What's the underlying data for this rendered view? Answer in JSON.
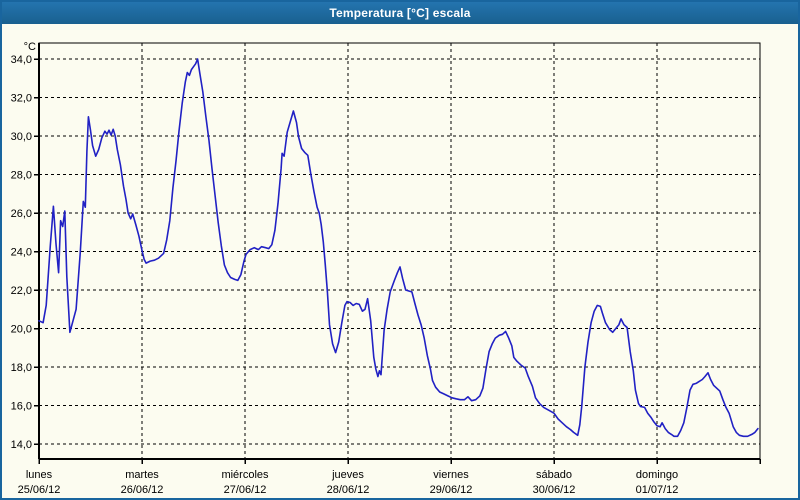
{
  "window": {
    "title": "Temperatura [°C] escala"
  },
  "colors": {
    "titlebar_top": "#2474af",
    "titlebar_bottom": "#19608f",
    "window_border": "#19659e",
    "background": "#fcfcf0",
    "grid": "#000000",
    "axis_text": "#000000",
    "series_line": "#2121c4"
  },
  "chart_data": {
    "type": "line",
    "title": "Temperatura [°C] escala",
    "xlabel": "",
    "ylabel": "°C",
    "grid": "dashed",
    "legend": "none",
    "ylim_display": [
      14,
      34
    ],
    "y_ticks": [
      34,
      32,
      30,
      28,
      26,
      24,
      22,
      20,
      18,
      16,
      14
    ],
    "y_tick_labels": [
      "34,0",
      "32,0",
      "30,0",
      "28,0",
      "26,0",
      "24,0",
      "22,0",
      "20,0",
      "18,0",
      "16,0",
      "14,0"
    ],
    "x_days": [
      {
        "name": "lunes",
        "date": "25/06/12"
      },
      {
        "name": "martes",
        "date": "26/06/12"
      },
      {
        "name": "miércoles",
        "date": "27/06/12"
      },
      {
        "name": "jueves",
        "date": "28/06/12"
      },
      {
        "name": "viernes",
        "date": "29/06/12"
      },
      {
        "name": "sábado",
        "date": "30/06/12"
      },
      {
        "name": "domingo",
        "date": "01/07/12"
      }
    ],
    "x_unit": "days_from_2012-06-25",
    "x_range_days": 7,
    "series": [
      {
        "name": "Temperatura [°C]",
        "color": "#2121c4",
        "points": [
          [
            0.0,
            20.4
          ],
          [
            0.04,
            20.3
          ],
          [
            0.07,
            21.2
          ],
          [
            0.11,
            24.3
          ],
          [
            0.14,
            26.35
          ],
          [
            0.165,
            24.4
          ],
          [
            0.19,
            22.9
          ],
          [
            0.21,
            25.6
          ],
          [
            0.23,
            25.3
          ],
          [
            0.25,
            26.1
          ],
          [
            0.27,
            22.7
          ],
          [
            0.3,
            19.8
          ],
          [
            0.33,
            20.4
          ],
          [
            0.36,
            21.0
          ],
          [
            0.4,
            23.9
          ],
          [
            0.43,
            26.6
          ],
          [
            0.45,
            26.3
          ],
          [
            0.465,
            29.2
          ],
          [
            0.48,
            31.0
          ],
          [
            0.5,
            30.3
          ],
          [
            0.52,
            29.5
          ],
          [
            0.55,
            28.95
          ],
          [
            0.58,
            29.3
          ],
          [
            0.61,
            29.9
          ],
          [
            0.64,
            30.25
          ],
          [
            0.66,
            30.1
          ],
          [
            0.68,
            30.3
          ],
          [
            0.7,
            30.05
          ],
          [
            0.72,
            30.35
          ],
          [
            0.74,
            30.0
          ],
          [
            0.76,
            29.3
          ],
          [
            0.79,
            28.5
          ],
          [
            0.82,
            27.4
          ],
          [
            0.845,
            26.7
          ],
          [
            0.865,
            26.0
          ],
          [
            0.89,
            25.7
          ],
          [
            0.91,
            25.95
          ],
          [
            0.94,
            25.4
          ],
          [
            0.97,
            24.8
          ],
          [
            1.0,
            24.05
          ],
          [
            1.02,
            23.6
          ],
          [
            1.04,
            23.4
          ],
          [
            1.08,
            23.5
          ],
          [
            1.12,
            23.55
          ],
          [
            1.16,
            23.65
          ],
          [
            1.19,
            23.8
          ],
          [
            1.21,
            23.9
          ],
          [
            1.24,
            24.6
          ],
          [
            1.27,
            25.6
          ],
          [
            1.3,
            27.3
          ],
          [
            1.33,
            28.7
          ],
          [
            1.36,
            30.3
          ],
          [
            1.39,
            31.7
          ],
          [
            1.42,
            32.8
          ],
          [
            1.44,
            33.3
          ],
          [
            1.46,
            33.15
          ],
          [
            1.48,
            33.45
          ],
          [
            1.5,
            33.6
          ],
          [
            1.52,
            33.75
          ],
          [
            1.54,
            34.0
          ],
          [
            1.56,
            33.3
          ],
          [
            1.59,
            32.3
          ],
          [
            1.62,
            31.0
          ],
          [
            1.65,
            29.8
          ],
          [
            1.68,
            28.3
          ],
          [
            1.71,
            26.9
          ],
          [
            1.74,
            25.5
          ],
          [
            1.77,
            24.3
          ],
          [
            1.8,
            23.3
          ],
          [
            1.83,
            22.9
          ],
          [
            1.86,
            22.65
          ],
          [
            1.9,
            22.55
          ],
          [
            1.93,
            22.5
          ],
          [
            1.96,
            22.8
          ],
          [
            1.99,
            23.5
          ],
          [
            2.01,
            23.85
          ],
          [
            2.05,
            24.1
          ],
          [
            2.09,
            24.2
          ],
          [
            2.13,
            24.1
          ],
          [
            2.16,
            24.25
          ],
          [
            2.2,
            24.2
          ],
          [
            2.23,
            24.15
          ],
          [
            2.26,
            24.35
          ],
          [
            2.29,
            25.1
          ],
          [
            2.32,
            26.5
          ],
          [
            2.35,
            28.3
          ],
          [
            2.36,
            29.1
          ],
          [
            2.38,
            28.95
          ],
          [
            2.41,
            30.2
          ],
          [
            2.44,
            30.75
          ],
          [
            2.47,
            31.3
          ],
          [
            2.5,
            30.7
          ],
          [
            2.52,
            29.95
          ],
          [
            2.55,
            29.35
          ],
          [
            2.58,
            29.15
          ],
          [
            2.61,
            29.0
          ],
          [
            2.64,
            28.0
          ],
          [
            2.67,
            27.1
          ],
          [
            2.7,
            26.3
          ],
          [
            2.72,
            26.0
          ],
          [
            2.74,
            25.4
          ],
          [
            2.76,
            24.5
          ],
          [
            2.78,
            23.3
          ],
          [
            2.8,
            21.9
          ],
          [
            2.82,
            20.2
          ],
          [
            2.85,
            19.2
          ],
          [
            2.88,
            18.75
          ],
          [
            2.91,
            19.3
          ],
          [
            2.94,
            20.3
          ],
          [
            2.97,
            21.2
          ],
          [
            2.99,
            21.4
          ],
          [
            3.02,
            21.35
          ],
          [
            3.05,
            21.2
          ],
          [
            3.08,
            21.3
          ],
          [
            3.11,
            21.25
          ],
          [
            3.14,
            20.9
          ],
          [
            3.165,
            21.0
          ],
          [
            3.19,
            21.55
          ],
          [
            3.22,
            20.4
          ],
          [
            3.25,
            18.5
          ],
          [
            3.27,
            17.9
          ],
          [
            3.29,
            17.5
          ],
          [
            3.305,
            17.8
          ],
          [
            3.32,
            17.6
          ],
          [
            3.35,
            19.9
          ],
          [
            3.38,
            21.0
          ],
          [
            3.41,
            21.9
          ],
          [
            3.45,
            22.5
          ],
          [
            3.48,
            22.9
          ],
          [
            3.505,
            23.2
          ],
          [
            3.53,
            22.6
          ],
          [
            3.56,
            22.0
          ],
          [
            3.59,
            21.95
          ],
          [
            3.62,
            21.9
          ],
          [
            3.65,
            21.3
          ],
          [
            3.68,
            20.7
          ],
          [
            3.71,
            20.2
          ],
          [
            3.74,
            19.5
          ],
          [
            3.77,
            18.6
          ],
          [
            3.8,
            17.9
          ],
          [
            3.82,
            17.3
          ],
          [
            3.85,
            16.95
          ],
          [
            3.89,
            16.7
          ],
          [
            3.93,
            16.6
          ],
          [
            3.97,
            16.5
          ],
          [
            4.01,
            16.4
          ],
          [
            4.05,
            16.35
          ],
          [
            4.09,
            16.3
          ],
          [
            4.13,
            16.3
          ],
          [
            4.165,
            16.45
          ],
          [
            4.2,
            16.25
          ],
          [
            4.24,
            16.3
          ],
          [
            4.28,
            16.5
          ],
          [
            4.31,
            16.9
          ],
          [
            4.34,
            17.9
          ],
          [
            4.37,
            18.8
          ],
          [
            4.4,
            19.2
          ],
          [
            4.43,
            19.5
          ],
          [
            4.47,
            19.65
          ],
          [
            4.5,
            19.7
          ],
          [
            4.53,
            19.85
          ],
          [
            4.56,
            19.5
          ],
          [
            4.59,
            19.1
          ],
          [
            4.61,
            18.5
          ],
          [
            4.64,
            18.3
          ],
          [
            4.68,
            18.1
          ],
          [
            4.72,
            17.95
          ],
          [
            4.75,
            17.5
          ],
          [
            4.79,
            17.0
          ],
          [
            4.82,
            16.4
          ],
          [
            4.86,
            16.1
          ],
          [
            4.9,
            15.9
          ],
          [
            4.95,
            15.75
          ],
          [
            5.0,
            15.6
          ],
          [
            5.04,
            15.3
          ],
          [
            5.08,
            15.1
          ],
          [
            5.12,
            14.9
          ],
          [
            5.16,
            14.75
          ],
          [
            5.19,
            14.6
          ],
          [
            5.23,
            14.45
          ],
          [
            5.25,
            15.0
          ],
          [
            5.27,
            16.0
          ],
          [
            5.3,
            18.0
          ],
          [
            5.33,
            19.3
          ],
          [
            5.36,
            20.3
          ],
          [
            5.39,
            20.9
          ],
          [
            5.42,
            21.2
          ],
          [
            5.45,
            21.15
          ],
          [
            5.47,
            20.8
          ],
          [
            5.5,
            20.3
          ],
          [
            5.54,
            19.95
          ],
          [
            5.57,
            19.8
          ],
          [
            5.6,
            20.0
          ],
          [
            5.63,
            20.2
          ],
          [
            5.65,
            20.5
          ],
          [
            5.68,
            20.2
          ],
          [
            5.71,
            20.05
          ],
          [
            5.74,
            18.8
          ],
          [
            5.77,
            17.8
          ],
          [
            5.79,
            16.8
          ],
          [
            5.82,
            16.1
          ],
          [
            5.84,
            15.95
          ],
          [
            5.88,
            15.9
          ],
          [
            5.91,
            15.6
          ],
          [
            5.94,
            15.4
          ],
          [
            5.97,
            15.15
          ],
          [
            6.0,
            14.95
          ],
          [
            6.03,
            14.9
          ],
          [
            6.05,
            15.1
          ],
          [
            6.08,
            14.8
          ],
          [
            6.11,
            14.6
          ],
          [
            6.14,
            14.5
          ],
          [
            6.165,
            14.4
          ],
          [
            6.2,
            14.4
          ],
          [
            6.23,
            14.7
          ],
          [
            6.26,
            15.1
          ],
          [
            6.29,
            15.9
          ],
          [
            6.32,
            16.8
          ],
          [
            6.35,
            17.1
          ],
          [
            6.38,
            17.15
          ],
          [
            6.41,
            17.25
          ],
          [
            6.44,
            17.35
          ],
          [
            6.465,
            17.5
          ],
          [
            6.495,
            17.7
          ],
          [
            6.52,
            17.35
          ],
          [
            6.55,
            17.05
          ],
          [
            6.58,
            16.9
          ],
          [
            6.61,
            16.75
          ],
          [
            6.64,
            16.3
          ],
          [
            6.67,
            15.9
          ],
          [
            6.7,
            15.6
          ],
          [
            6.74,
            14.9
          ],
          [
            6.77,
            14.6
          ],
          [
            6.8,
            14.45
          ],
          [
            6.84,
            14.4
          ],
          [
            6.88,
            14.4
          ],
          [
            6.92,
            14.5
          ],
          [
            6.95,
            14.6
          ],
          [
            6.98,
            14.8
          ]
        ]
      }
    ]
  }
}
